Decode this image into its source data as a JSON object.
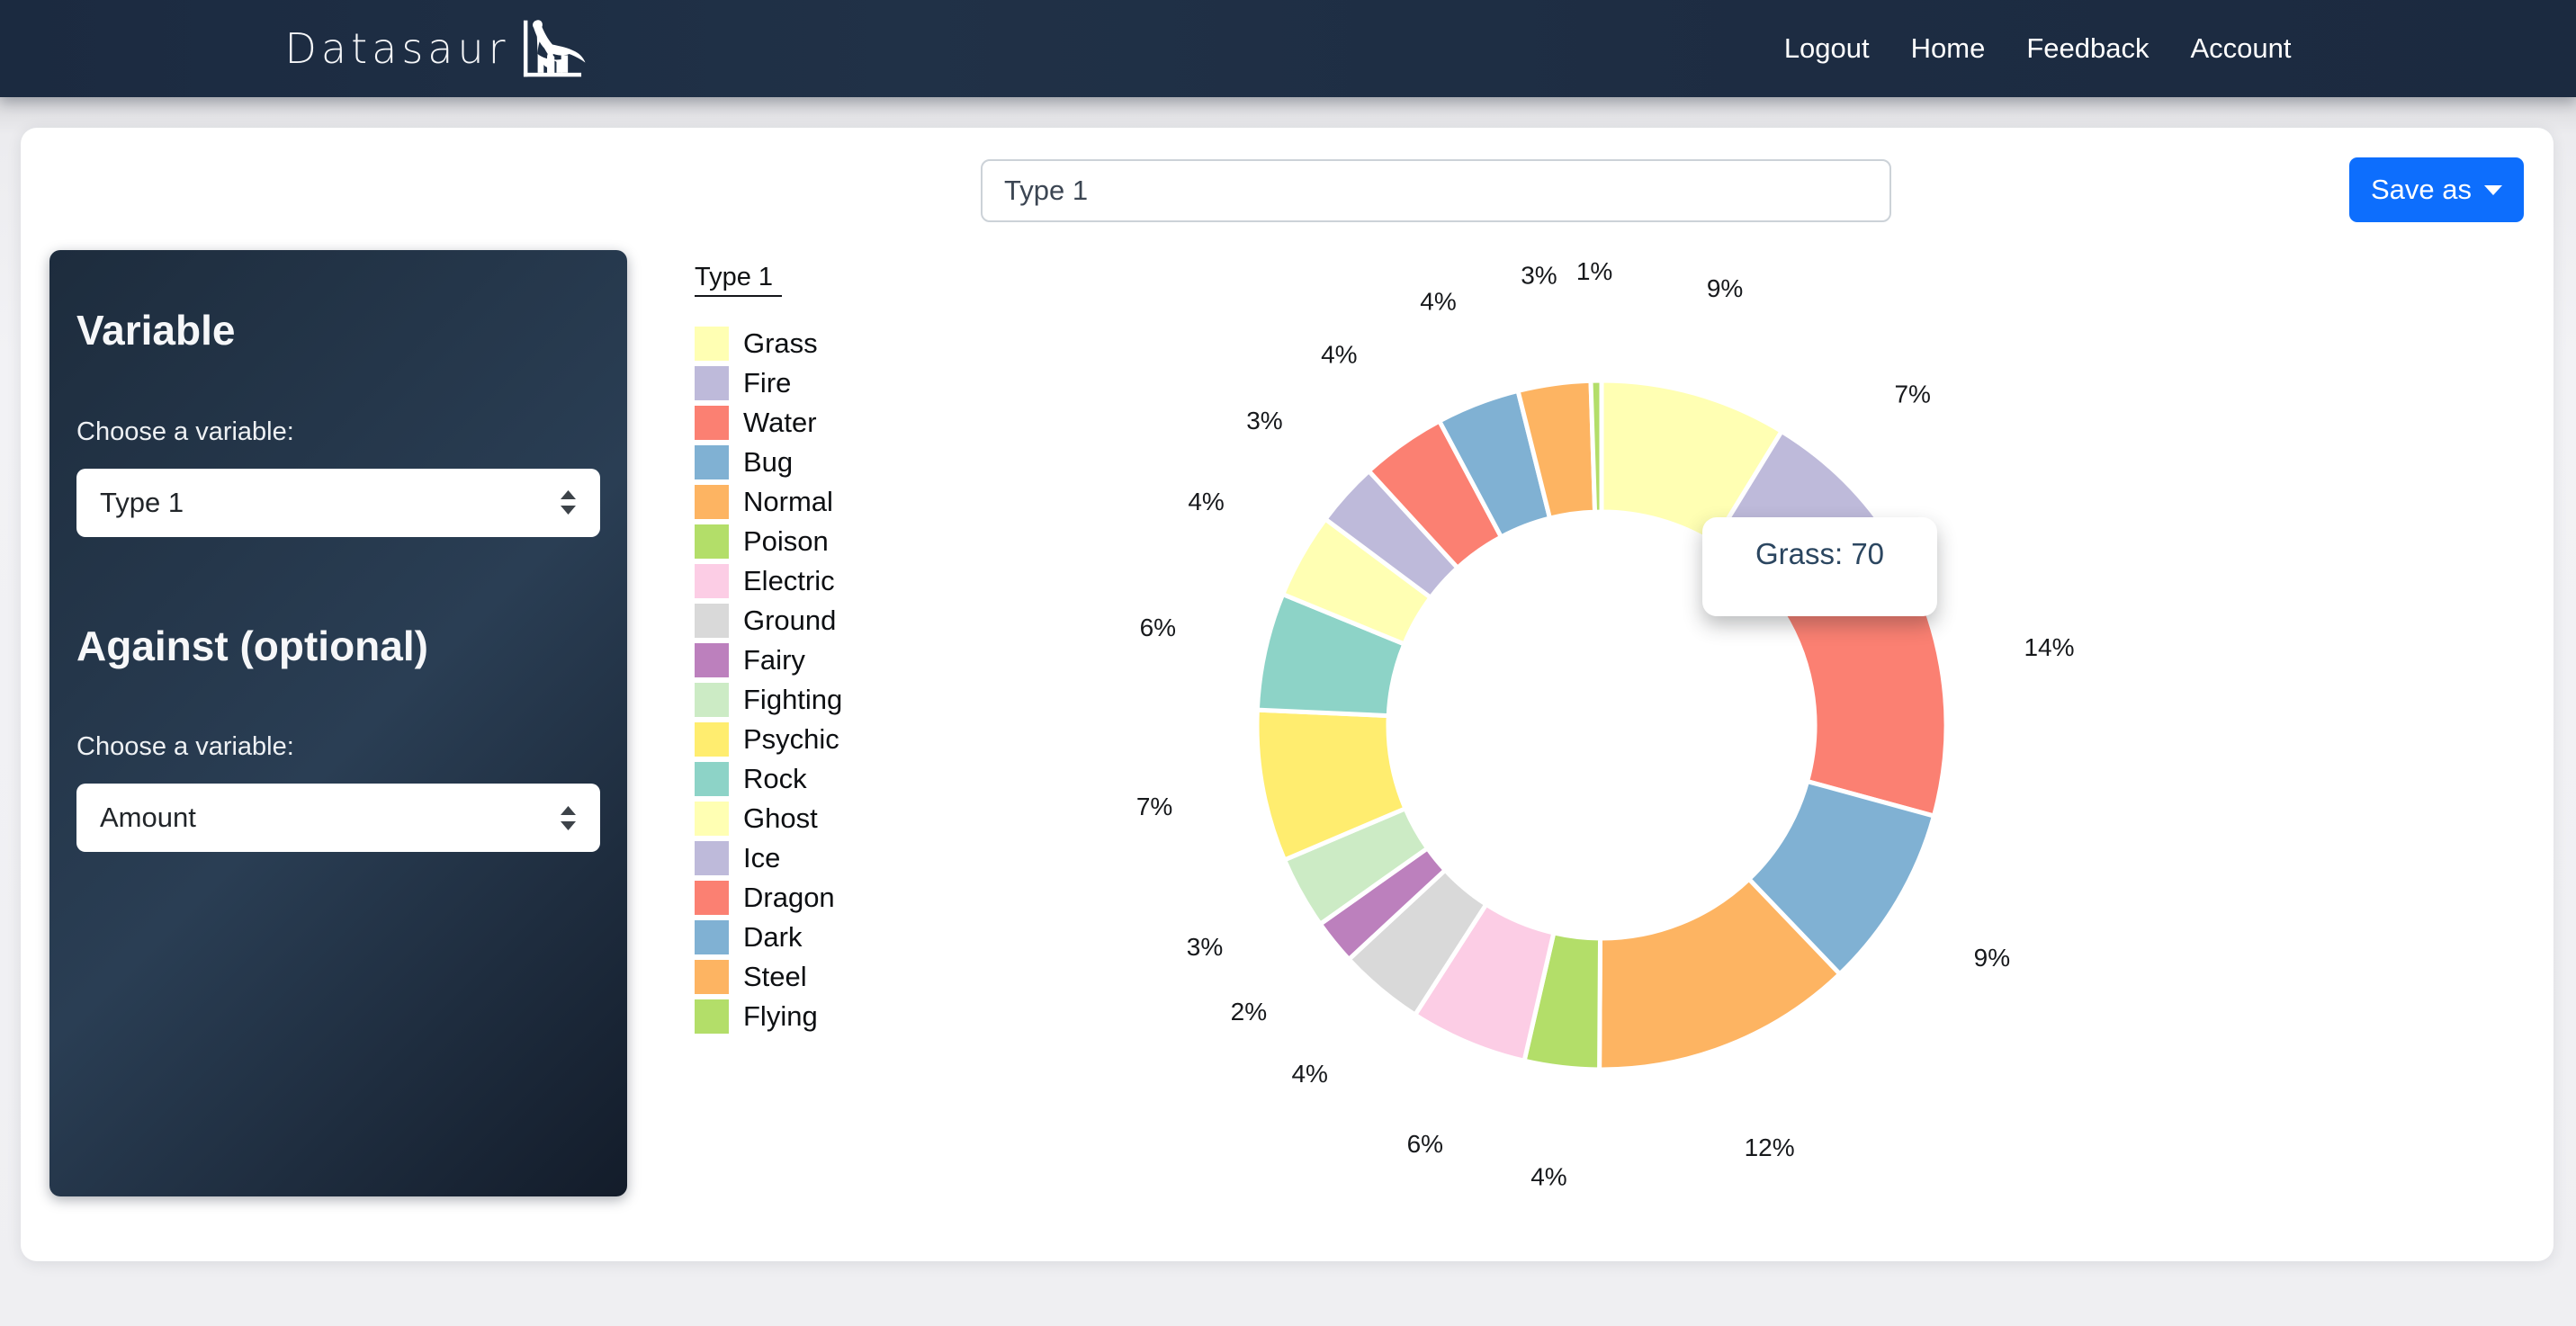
{
  "navbar": {
    "brand": "Datasaur",
    "links": [
      "Logout",
      "Home",
      "Feedback",
      "Account"
    ]
  },
  "toolbar": {
    "dataset_title_value": "Type 1",
    "save_as_label": "Save as"
  },
  "sidebar": {
    "variable_heading": "Variable",
    "variable_label": "Choose a variable:",
    "variable_selected": "Type 1",
    "against_heading": "Against (optional)",
    "against_label": "Choose a variable:",
    "against_selected": "Amount"
  },
  "chart_data": {
    "type": "pie",
    "style": "doughnut",
    "legend_title": "Type 1",
    "legend_position": "left",
    "labels": "percent-outside",
    "start_angle_deg": 0,
    "direction": "clockwise",
    "tooltip": {
      "label": "Grass",
      "value": 70,
      "text": "Grass: 70"
    },
    "slices": [
      {
        "label": "Grass",
        "color": "#FFFFB3",
        "percent_label": "9%",
        "arc_percent": 8.75
      },
      {
        "label": "Fire",
        "color": "#BEBADA",
        "percent_label": "7%",
        "arc_percent": 6.5
      },
      {
        "label": "Water",
        "color": "#FB8072",
        "percent_label": "14%",
        "arc_percent": 14.0
      },
      {
        "label": "Bug",
        "color": "#80B1D3",
        "percent_label": "9%",
        "arc_percent": 8.6
      },
      {
        "label": "Normal",
        "color": "#FDB462",
        "percent_label": "12%",
        "arc_percent": 12.25
      },
      {
        "label": "Poison",
        "color": "#B3DE69",
        "percent_label": "4%",
        "arc_percent": 3.5
      },
      {
        "label": "Electric",
        "color": "#FCCDE5",
        "percent_label": "6%",
        "arc_percent": 5.5
      },
      {
        "label": "Ground",
        "color": "#D9D9D9",
        "percent_label": "4%",
        "arc_percent": 4.0
      },
      {
        "label": "Fairy",
        "color": "#BC80BD",
        "percent_label": "2%",
        "arc_percent": 2.1
      },
      {
        "label": "Fighting",
        "color": "#CCEBC5",
        "percent_label": "3%",
        "arc_percent": 3.4
      },
      {
        "label": "Psychic",
        "color": "#FFED6F",
        "percent_label": "7%",
        "arc_percent": 7.1
      },
      {
        "label": "Rock",
        "color": "#8DD3C7",
        "percent_label": "6%",
        "arc_percent": 5.5
      },
      {
        "label": "Ghost",
        "color": "#FFFFB3",
        "percent_label": "4%",
        "arc_percent": 4.0
      },
      {
        "label": "Ice",
        "color": "#BEBADA",
        "percent_label": "3%",
        "arc_percent": 3.0
      },
      {
        "label": "Dragon",
        "color": "#FB8072",
        "percent_label": "4%",
        "arc_percent": 4.0
      },
      {
        "label": "Dark",
        "color": "#80B1D3",
        "percent_label": "4%",
        "arc_percent": 3.9
      },
      {
        "label": "Steel",
        "color": "#FDB462",
        "percent_label": "3%",
        "arc_percent": 3.4
      },
      {
        "label": "Flying",
        "color": "#B3DE69",
        "percent_label": "1%",
        "arc_percent": 0.5
      }
    ]
  }
}
